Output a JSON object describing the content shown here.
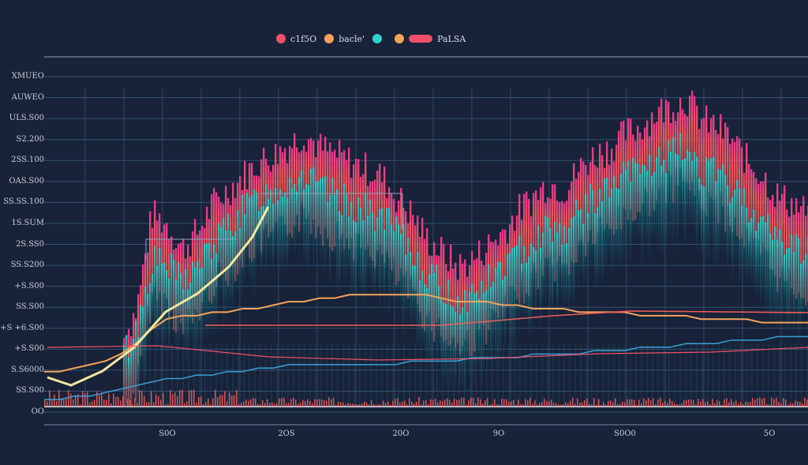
{
  "legend": [
    {
      "label": "c1f5O",
      "color": "#f0506a",
      "shape": "dot"
    },
    {
      "label": "bacle'",
      "color": "#f6a35a",
      "shape": "dot"
    },
    {
      "label": "",
      "color": "#2fd1d0",
      "shape": "dot"
    },
    {
      "label": "PaLSA",
      "color": "#f0506a",
      "shape": "pill"
    }
  ],
  "colors": {
    "background": "#182238",
    "grid": "#3b5d80",
    "coral": "#f25b5b",
    "cyan": "#2ad3cf",
    "magenta": "#e8368f",
    "orange": "#f6a35a",
    "yellow": "#f4e7a0",
    "blue": "#3aa0d8"
  },
  "chart_data": {
    "type": "area",
    "title": "",
    "xlabel": "",
    "ylabel": "",
    "y_tick_labels": [
      "XMUEO",
      "AUWEO",
      "ULS.S00",
      "S2.200",
      "2SS.100",
      "OAS.S00",
      "SS.SS.100",
      "1S.SUM",
      "2S.SS0",
      "SS.S200",
      "+S.S00",
      "SS.S00",
      "+S +6.S00",
      "+S.S00",
      "S.S6000",
      "SS.S00",
      "OO"
    ],
    "x_tick_labels": [
      "S0O",
      "2OS",
      "20O",
      "9O",
      "S0O0",
      "5O"
    ],
    "grid": true,
    "series": [
      {
        "name": "",
        "color": "#f25b5b",
        "values": [
          2,
          3,
          5,
          8,
          12,
          18,
          28,
          55,
          52,
          45,
          50,
          58,
          62,
          66,
          70,
          72,
          75,
          78,
          74,
          72,
          70,
          68,
          66,
          60,
          55,
          48,
          44,
          40,
          42,
          46,
          50,
          56,
          60,
          64,
          62,
          68,
          72,
          74,
          78,
          80,
          84,
          86,
          88,
          82,
          80,
          76,
          70,
          66,
          60,
          58,
          55
        ]
      },
      {
        "name": "",
        "color": "#2ad3cf",
        "values": [
          1,
          2,
          4,
          6,
          9,
          14,
          22,
          42,
          40,
          36,
          40,
          46,
          52,
          56,
          60,
          62,
          64,
          66,
          62,
          60,
          58,
          56,
          54,
          50,
          44,
          38,
          34,
          30,
          32,
          36,
          40,
          44,
          48,
          52,
          50,
          56,
          60,
          62,
          66,
          68,
          70,
          72,
          74,
          68,
          66,
          62,
          58,
          52,
          48,
          46,
          44
        ]
      },
      {
        "name": "",
        "color": "#f6a35a",
        "values": [
          10,
          10,
          11,
          12,
          13,
          15,
          18,
          22,
          25,
          26,
          26,
          27,
          27,
          28,
          28,
          29,
          30,
          30,
          31,
          31,
          32,
          32,
          32,
          32,
          32,
          32,
          31,
          30,
          30,
          30,
          29,
          29,
          28,
          28,
          28,
          27,
          27,
          27,
          27,
          26,
          26,
          26,
          26,
          25,
          25,
          25,
          25,
          24,
          24,
          24,
          24
        ]
      },
      {
        "name": "",
        "color": "#3aa0d8",
        "values": [
          2,
          2,
          3,
          3,
          4,
          5,
          6,
          7,
          8,
          8,
          9,
          9,
          10,
          10,
          11,
          11,
          12,
          12,
          12,
          12,
          12,
          12,
          12,
          12,
          13,
          13,
          13,
          13,
          14,
          14,
          14,
          14,
          15,
          15,
          15,
          15,
          16,
          16,
          16,
          17,
          17,
          17,
          18,
          18,
          18,
          19,
          19,
          19,
          20,
          20,
          20
        ]
      }
    ]
  }
}
